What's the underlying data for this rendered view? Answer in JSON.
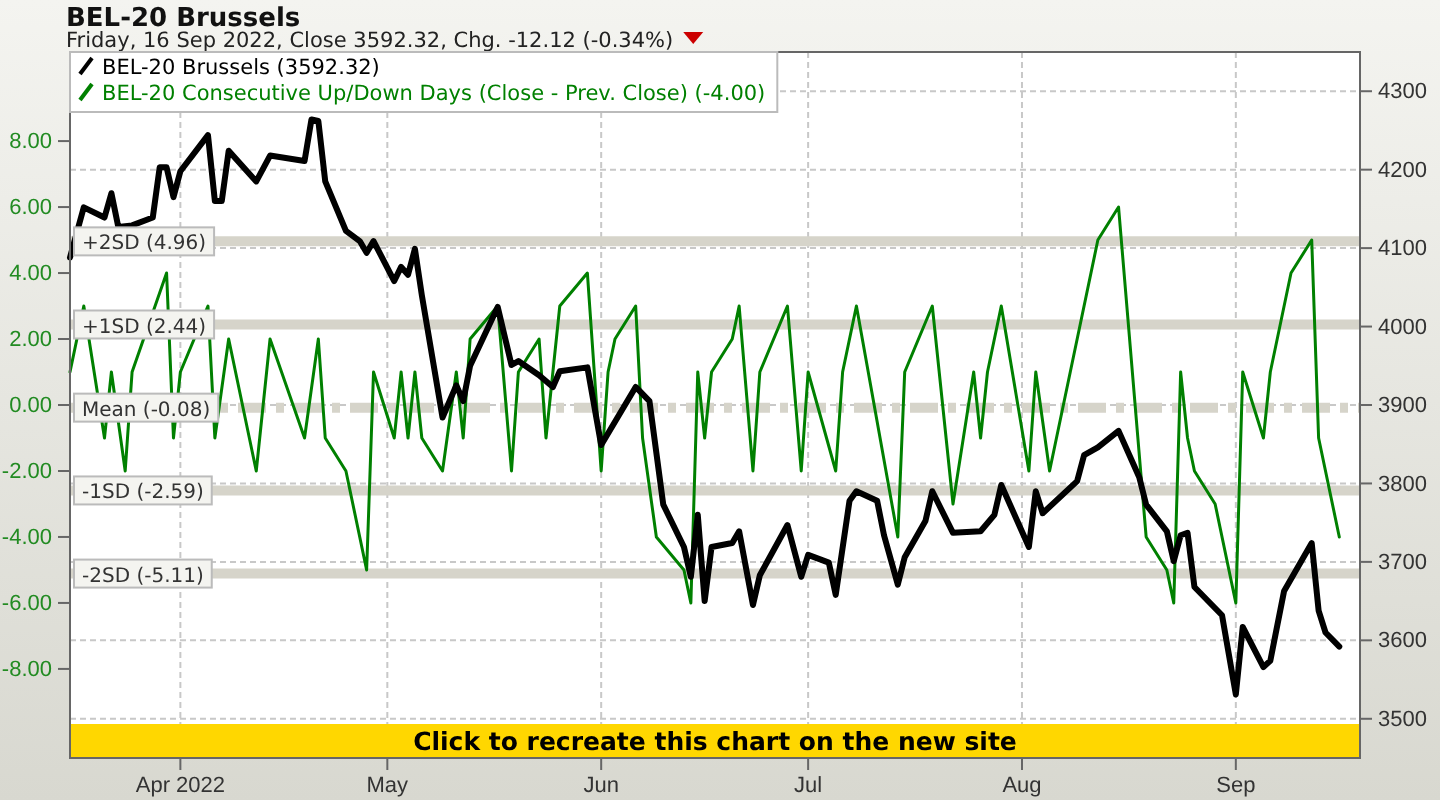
{
  "chart_data": {
    "type": "line",
    "title": "BEL-20 Brussels",
    "subtitle": "Friday, 16 Sep 2022, Close 3592.32, Chg. -12.12 (-0.34%)",
    "xlim": [
      "2022-03-16",
      "2022-09-19"
    ],
    "xticks": [
      {
        "value": "2022-04-01",
        "label": "Apr 2022"
      },
      {
        "value": "2022-05-01",
        "label": "May"
      },
      {
        "value": "2022-06-01",
        "label": "Jun"
      },
      {
        "value": "2022-07-01",
        "label": "Jul"
      },
      {
        "value": "2022-08-01",
        "label": "Aug"
      },
      {
        "value": "2022-09-01",
        "label": "Sep"
      }
    ],
    "ylim": [
      3450,
      4350
    ],
    "yticks": [
      3500,
      3600,
      3700,
      3800,
      3900,
      4000,
      4100,
      4200,
      4300
    ],
    "y2lim": [
      -10.7,
      10.7
    ],
    "y2ticks": [
      {
        "value": 8,
        "label": "8.00"
      },
      {
        "value": 6,
        "label": "6.00"
      },
      {
        "value": 4,
        "label": "4.00"
      },
      {
        "value": 2,
        "label": "2.00"
      },
      {
        "value": 0,
        "label": "0.00"
      },
      {
        "value": -2,
        "label": "-2.00"
      },
      {
        "value": -4,
        "label": "-4.00"
      },
      {
        "value": -6,
        "label": "-6.00"
      },
      {
        "value": -8,
        "label": "-8.00"
      }
    ],
    "grid": true,
    "legend": "top left",
    "marker": "none",
    "series": [
      {
        "name": "BEL-20 Brussels (3592.32)",
        "color": "#000000",
        "x": [
          "2022-03-16",
          "2022-03-18",
          "2022-03-21",
          "2022-03-22",
          "2022-03-23",
          "2022-03-25",
          "2022-03-28",
          "2022-03-29",
          "2022-03-30",
          "2022-03-31",
          "2022-04-01",
          "2022-04-05",
          "2022-04-06",
          "2022-04-07",
          "2022-04-08",
          "2022-04-12",
          "2022-04-14",
          "2022-04-19",
          "2022-04-20",
          "2022-04-21",
          "2022-04-22",
          "2022-04-25",
          "2022-04-27",
          "2022-04-28",
          "2022-04-29",
          "2022-05-02",
          "2022-05-03",
          "2022-05-04",
          "2022-05-05",
          "2022-05-06",
          "2022-05-09",
          "2022-05-11",
          "2022-05-12",
          "2022-05-13",
          "2022-05-17",
          "2022-05-19",
          "2022-05-20",
          "2022-05-23",
          "2022-05-25",
          "2022-05-26",
          "2022-05-30",
          "2022-06-01",
          "2022-06-06",
          "2022-06-08",
          "2022-06-10",
          "2022-06-13",
          "2022-06-14",
          "2022-06-15",
          "2022-06-16",
          "2022-06-17",
          "2022-06-20",
          "2022-06-21",
          "2022-06-23",
          "2022-06-24",
          "2022-06-28",
          "2022-06-30",
          "2022-07-01",
          "2022-07-04",
          "2022-07-05",
          "2022-07-07",
          "2022-07-08",
          "2022-07-11",
          "2022-07-12",
          "2022-07-14",
          "2022-07-15",
          "2022-07-18",
          "2022-07-19",
          "2022-07-22",
          "2022-07-26",
          "2022-07-28",
          "2022-07-29",
          "2022-08-02",
          "2022-08-03",
          "2022-08-04",
          "2022-08-09",
          "2022-08-10",
          "2022-08-12",
          "2022-08-15",
          "2022-08-18",
          "2022-08-19",
          "2022-08-22",
          "2022-08-23",
          "2022-08-24",
          "2022-08-25",
          "2022-08-26",
          "2022-08-30",
          "2022-09-01",
          "2022-09-02",
          "2022-09-05",
          "2022-09-06",
          "2022-09-08",
          "2022-09-12",
          "2022-09-13",
          "2022-09-14",
          "2022-09-16"
        ],
        "values": [
          4088,
          4152,
          4139,
          4170,
          4127,
          4129,
          4139,
          4203,
          4203,
          4165,
          4198,
          4244,
          4160,
          4160,
          4224,
          4185,
          4218,
          4211,
          4264,
          4262,
          4185,
          4122,
          4109,
          4094,
          4109,
          4058,
          4076,
          4066,
          4099,
          4040,
          3884,
          3925,
          3905,
          3950,
          4025,
          3951,
          3956,
          3938,
          3923,
          3943,
          3948,
          3849,
          3923,
          3905,
          3773,
          3719,
          3681,
          3760,
          3650,
          3719,
          3724,
          3739,
          3645,
          3683,
          3747,
          3681,
          3709,
          3699,
          3658,
          3778,
          3790,
          3778,
          3734,
          3671,
          3706,
          3752,
          3790,
          3737,
          3739,
          3760,
          3798,
          3719,
          3790,
          3762,
          3803,
          3836,
          3846,
          3867,
          3808,
          3773,
          3739,
          3701,
          3734,
          3737,
          3668,
          3632,
          3531,
          3617,
          3566,
          3574,
          3663,
          3724,
          3638,
          3610,
          3592
        ]
      },
      {
        "name": "BEL-20 Consecutive Up/Down Days (Close - Prev. Close) (-4.00)",
        "color": "#008000",
        "axis": "y2",
        "x": [
          "2022-03-16",
          "2022-03-18",
          "2022-03-21",
          "2022-03-22",
          "2022-03-24",
          "2022-03-25",
          "2022-03-30",
          "2022-03-31",
          "2022-04-01",
          "2022-04-05",
          "2022-04-06",
          "2022-04-08",
          "2022-04-12",
          "2022-04-14",
          "2022-04-19",
          "2022-04-21",
          "2022-04-22",
          "2022-04-25",
          "2022-04-28",
          "2022-04-29",
          "2022-05-02",
          "2022-05-03",
          "2022-05-04",
          "2022-05-05",
          "2022-05-06",
          "2022-05-09",
          "2022-05-11",
          "2022-05-12",
          "2022-05-13",
          "2022-05-17",
          "2022-05-19",
          "2022-05-20",
          "2022-05-23",
          "2022-05-24",
          "2022-05-26",
          "2022-05-30",
          "2022-06-01",
          "2022-06-02",
          "2022-06-03",
          "2022-06-06",
          "2022-06-07",
          "2022-06-09",
          "2022-06-13",
          "2022-06-14",
          "2022-06-15",
          "2022-06-16",
          "2022-06-17",
          "2022-06-20",
          "2022-06-21",
          "2022-06-23",
          "2022-06-24",
          "2022-06-28",
          "2022-06-30",
          "2022-07-01",
          "2022-07-05",
          "2022-07-06",
          "2022-07-08",
          "2022-07-14",
          "2022-07-15",
          "2022-07-19",
          "2022-07-22",
          "2022-07-25",
          "2022-07-26",
          "2022-07-27",
          "2022-07-29",
          "2022-08-02",
          "2022-08-03",
          "2022-08-05",
          "2022-08-08",
          "2022-08-12",
          "2022-08-15",
          "2022-08-19",
          "2022-08-22",
          "2022-08-23",
          "2022-08-24",
          "2022-08-25",
          "2022-08-26",
          "2022-08-29",
          "2022-09-01",
          "2022-09-02",
          "2022-09-05",
          "2022-09-06",
          "2022-09-09",
          "2022-09-12",
          "2022-09-13",
          "2022-09-16"
        ],
        "values": [
          1,
          3,
          -1,
          1,
          -2,
          1,
          4,
          -1,
          1,
          3,
          -1,
          2,
          -2,
          2,
          -1,
          2,
          -1,
          -2,
          -5,
          1,
          -1,
          1,
          -1,
          1,
          -1,
          -2,
          1,
          -1,
          2,
          3,
          -2,
          1,
          2,
          -1,
          3,
          4,
          -2,
          1,
          2,
          3,
          -1,
          -4,
          -5,
          -6,
          1,
          -1,
          1,
          2,
          3,
          -2,
          1,
          3,
          -2,
          1,
          -2,
          1,
          3,
          -4,
          1,
          3,
          -3,
          1,
          -1,
          1,
          3,
          -2,
          1,
          -2,
          1,
          5,
          6,
          -4,
          -5,
          -6,
          1,
          -1,
          -2,
          -3,
          -6,
          1,
          -1,
          1,
          4,
          5,
          -1,
          -4
        ]
      }
    ],
    "ref_lines": [
      {
        "axis": "y2",
        "value": 4.96,
        "label": "+2SD (4.96)",
        "color": "#d6d4ca",
        "line_style": "solid"
      },
      {
        "axis": "y2",
        "value": 2.44,
        "label": "+1SD (2.44)",
        "color": "#d6d4ca",
        "line_style": "solid"
      },
      {
        "axis": "y2",
        "value": -0.08,
        "label": "Mean (-0.08)",
        "color": "#d6d4ca",
        "line_style": "dashdot"
      },
      {
        "axis": "y2",
        "value": -2.59,
        "label": "-1SD (-2.59)",
        "color": "#d6d4ca",
        "line_style": "solid"
      },
      {
        "axis": "y2",
        "value": -5.11,
        "label": "-2SD (-5.11)",
        "color": "#d6d4ca",
        "line_style": "solid"
      }
    ],
    "annotations": [
      "Click to recreate this chart on the new site"
    ]
  }
}
